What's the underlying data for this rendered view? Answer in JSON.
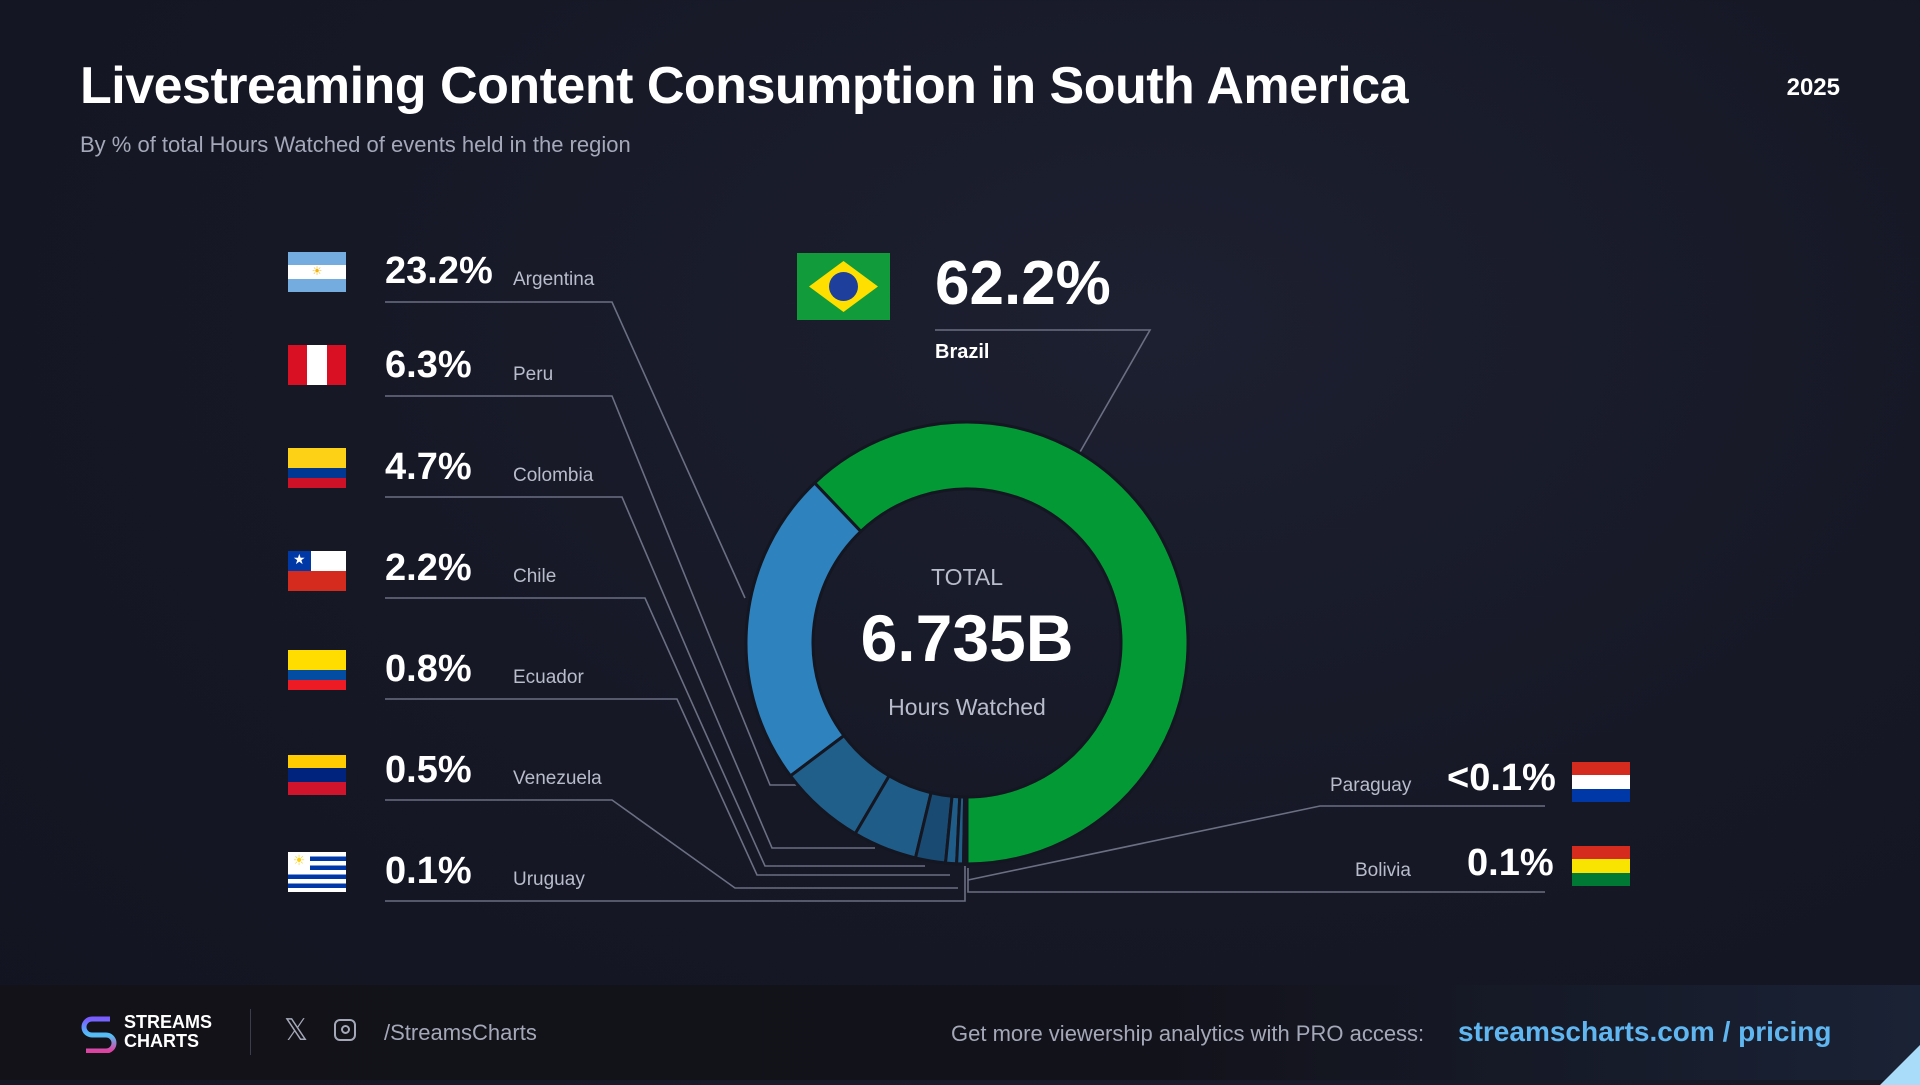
{
  "header": {
    "title": "Livestreaming Content Consumption in South America",
    "subtitle": "By % of total Hours Watched of events held in the region",
    "year": "2025"
  },
  "center": {
    "label_top": "TOTAL",
    "value": "6.735B",
    "label_bottom": "Hours Watched"
  },
  "chart_data": {
    "type": "pie",
    "title": "Livestreaming Content Consumption in South America",
    "total": "6.735B Hours Watched",
    "slices": [
      {
        "name": "Brazil",
        "value": 62.2,
        "label": "62.2%",
        "color": "#039a36"
      },
      {
        "name": "Argentina",
        "value": 23.2,
        "label": "23.2%",
        "color": "#2e82bd"
      },
      {
        "name": "Peru",
        "value": 6.3,
        "label": "6.3%",
        "color": "#215f8b"
      },
      {
        "name": "Colombia",
        "value": 4.7,
        "label": "4.7%",
        "color": "#1f5d88"
      },
      {
        "name": "Chile",
        "value": 2.2,
        "label": "2.2%",
        "color": "#194a72"
      },
      {
        "name": "Ecuador",
        "value": 0.8,
        "label": "0.8%",
        "color": "#1f5d88"
      },
      {
        "name": "Venezuela",
        "value": 0.5,
        "label": "0.5%",
        "color": "#215f8b"
      },
      {
        "name": "Uruguay",
        "value": 0.1,
        "label": "0.1%",
        "color": "#2e82bd"
      },
      {
        "name": "Bolivia",
        "value": 0.1,
        "label": "0.1%",
        "color": "#2e82bd"
      },
      {
        "name": "Paraguay",
        "value": 0.05,
        "label": "<0.1%",
        "color": "#2e82bd"
      }
    ]
  },
  "footer": {
    "brand_line1": "STREAMS",
    "brand_line2": "CHARTS",
    "handle": "/StreamsCharts",
    "cta": "Get more viewership analytics with PRO access:",
    "link": "streamscharts.com / pricing"
  }
}
